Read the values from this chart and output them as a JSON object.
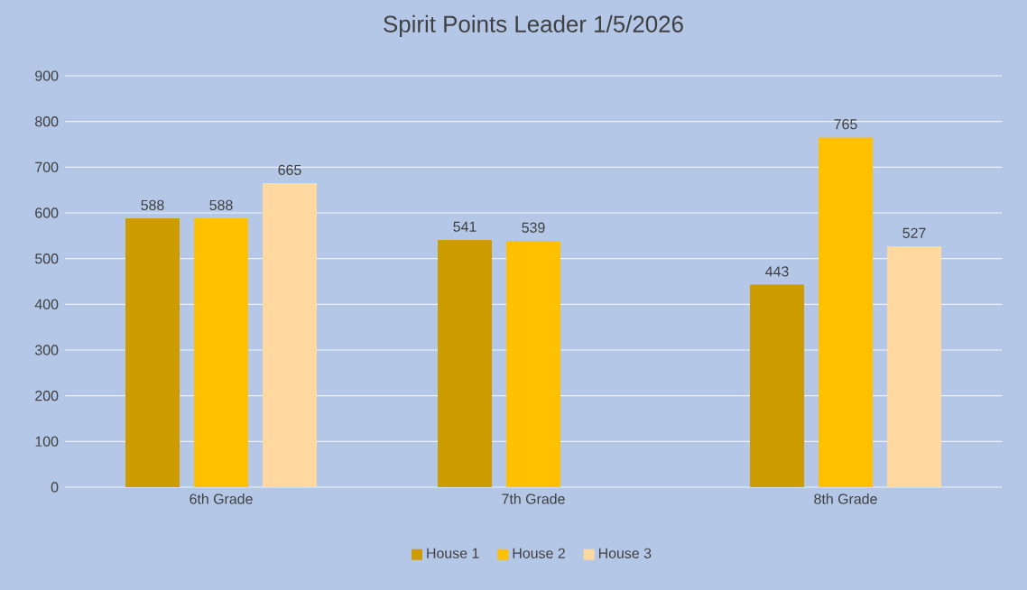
{
  "chart_data": {
    "type": "bar",
    "title": "Spirit Points Leader 1/5/2026",
    "categories": [
      "6th Grade",
      "7th Grade",
      "8th Grade"
    ],
    "series": [
      {
        "name": "House 1",
        "color": "#cc9c00",
        "values": [
          588,
          541,
          443
        ]
      },
      {
        "name": "House 2",
        "color": "#ffc000",
        "values": [
          588,
          539,
          765
        ]
      },
      {
        "name": "House 3",
        "color": "#ffd9a0",
        "values": [
          665,
          null,
          527
        ]
      }
    ],
    "ylim": [
      0,
      900
    ],
    "yticks": [
      0,
      100,
      200,
      300,
      400,
      500,
      600,
      700,
      800,
      900
    ],
    "grid": "y",
    "legend": "bottom",
    "data_labels": true
  }
}
